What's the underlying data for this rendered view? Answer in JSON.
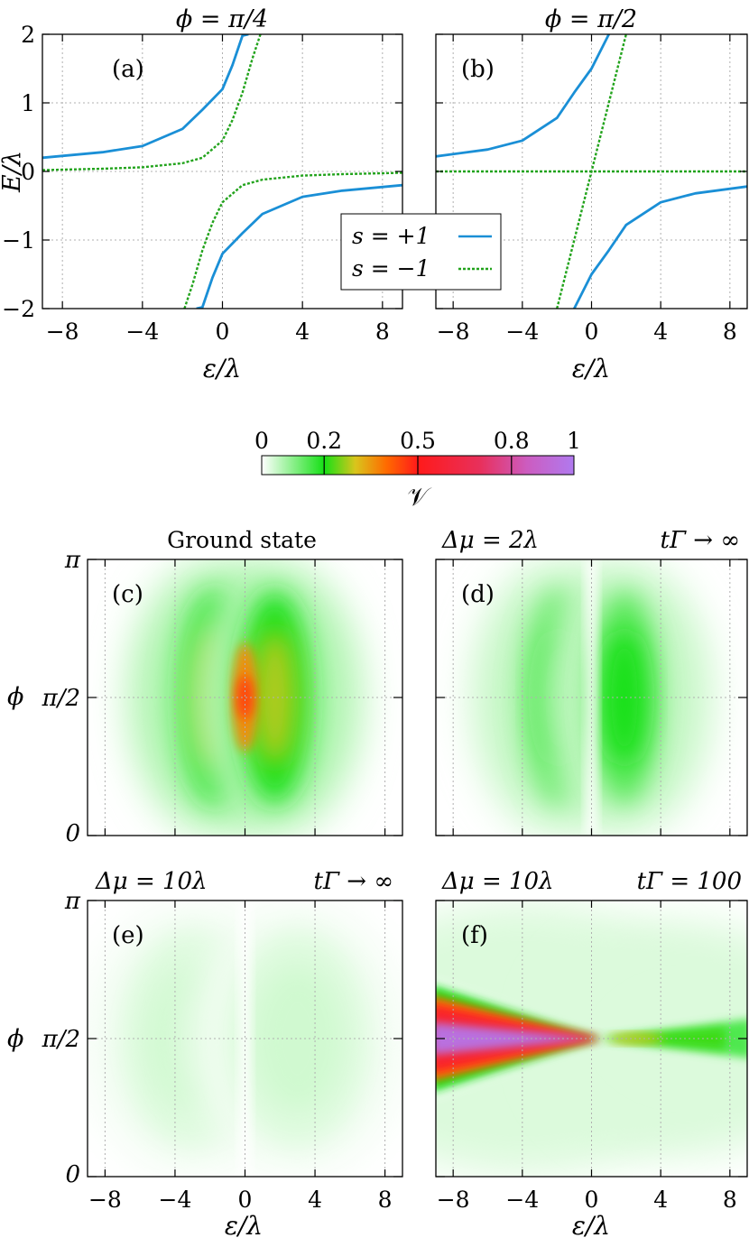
{
  "chart_data": [
    {
      "id": "a",
      "type": "line",
      "panel_label": "(a)",
      "title": "ϕ = π/4",
      "xlabel": "ε/λ",
      "ylabel": "E/λ",
      "xlim": [
        -9,
        9
      ],
      "ylim": [
        -2,
        2
      ],
      "x_ticks": [
        "−8",
        "−4",
        "0",
        "4",
        "8"
      ],
      "y_ticks": [
        "−2",
        "−1",
        "0",
        "1",
        "2"
      ],
      "grid": true,
      "series": [
        {
          "name": "s = +1",
          "color": "#1a8fd6",
          "style": "solid",
          "branches": [
            {
              "x": [
                -9,
                -6,
                -4,
                -2,
                -1,
                0,
                0.5,
                1.0,
                1.3
              ],
              "y": [
                0.2,
                0.28,
                0.37,
                0.62,
                0.9,
                1.2,
                1.55,
                1.98,
                2.0
              ]
            },
            {
              "x": [
                -1.3,
                -1.0,
                -0.5,
                0,
                1,
                2,
                4,
                6,
                9
              ],
              "y": [
                -2.0,
                -1.98,
                -1.55,
                -1.2,
                -0.9,
                -0.62,
                -0.37,
                -0.28,
                -0.2
              ]
            }
          ]
        },
        {
          "name": "s = −1",
          "color": "#22a31c",
          "style": "dashed",
          "branches": [
            {
              "x": [
                -9,
                -6,
                -4,
                -2,
                -1,
                0,
                0.5,
                1.0,
                1.5,
                1.9
              ],
              "y": [
                0.02,
                0.04,
                0.06,
                0.12,
                0.2,
                0.45,
                0.75,
                1.15,
                1.65,
                2.0
              ]
            },
            {
              "x": [
                -1.9,
                -1.5,
                -1.0,
                -0.5,
                0,
                1,
                2,
                4,
                6,
                9
              ],
              "y": [
                -2.0,
                -1.65,
                -1.15,
                -0.75,
                -0.45,
                -0.2,
                -0.12,
                -0.06,
                -0.04,
                -0.02
              ]
            }
          ]
        }
      ]
    },
    {
      "id": "b",
      "type": "line",
      "panel_label": "(b)",
      "title": "ϕ = π/2",
      "xlabel": "ε/λ",
      "xlim": [
        -9,
        9
      ],
      "ylim": [
        -2,
        2
      ],
      "x_ticks": [
        "−8",
        "−4",
        "0",
        "4",
        "8"
      ],
      "grid": true,
      "legend": {
        "position": "top-left",
        "entries": [
          "s = +1",
          "s = −1"
        ]
      },
      "series": [
        {
          "name": "s = +1",
          "color": "#1a8fd6",
          "style": "solid",
          "branches": [
            {
              "x": [
                -9,
                -6,
                -4,
                -2,
                -1,
                0,
                0.5,
                1.0
              ],
              "y": [
                0.22,
                0.32,
                0.45,
                0.78,
                1.15,
                1.5,
                1.75,
                2.0
              ]
            },
            {
              "x": [
                -1.0,
                -0.5,
                0,
                1,
                2,
                4,
                6,
                9
              ],
              "y": [
                -2.0,
                -1.75,
                -1.5,
                -1.15,
                -0.78,
                -0.45,
                -0.32,
                -0.22
              ]
            }
          ]
        },
        {
          "name": "s = −1",
          "color": "#22a31c",
          "style": "dashed",
          "branches": [
            {
              "x": [
                -9,
                9
              ],
              "y": [
                0,
                0
              ]
            },
            {
              "x": [
                -2.0,
                2.0
              ],
              "y": [
                -2,
                2
              ]
            }
          ]
        }
      ]
    },
    {
      "id": "colorbar",
      "type": "heatmap",
      "label": "𝒱",
      "ticks": [
        "0",
        "0.2",
        "0.5",
        "0.8",
        "1"
      ],
      "tick_values": [
        0,
        0.2,
        0.5,
        0.8,
        1
      ],
      "stops": [
        {
          "v": 0.0,
          "color": "#ffffff"
        },
        {
          "v": 0.2,
          "color": "#16e016"
        },
        {
          "v": 0.3,
          "color": "#d9c51c"
        },
        {
          "v": 0.4,
          "color": "#ff6a00"
        },
        {
          "v": 0.5,
          "color": "#ff1a1a"
        },
        {
          "v": 0.7,
          "color": "#e8305c"
        },
        {
          "v": 0.85,
          "color": "#cc5cc0"
        },
        {
          "v": 1.0,
          "color": "#b07aef"
        }
      ]
    },
    {
      "id": "c",
      "type": "heatmap",
      "panel_label": "(c)",
      "title": "Ground state",
      "ylabel": "ϕ",
      "xlim": [
        -9,
        9
      ],
      "y_ticks": [
        "0",
        "π/2",
        "π"
      ],
      "grid": true,
      "peak_value": 0.45,
      "lobes": [
        {
          "x_center": -1.7,
          "phi_center": 1.5708,
          "value": 0.28
        },
        {
          "x_center": 1.7,
          "phi_center": 1.5708,
          "value": 0.28
        },
        {
          "x_center": 0,
          "phi_center": 1.5708,
          "value": 0.45
        }
      ]
    },
    {
      "id": "d",
      "type": "heatmap",
      "panel_label": "(d)",
      "title_left": "Δμ = 2λ",
      "title_right": "tΓ → ∞",
      "xlim": [
        -9,
        9
      ],
      "grid": true,
      "lobes": [
        {
          "x_center": -1.9,
          "phi_center": 1.5708,
          "value": 0.2
        },
        {
          "x_center": 1.9,
          "phi_center": 1.5708,
          "value": 0.2
        }
      ]
    },
    {
      "id": "e",
      "type": "heatmap",
      "panel_label": "(e)",
      "title_left": "Δμ = 10λ",
      "title_right": "tΓ → ∞",
      "xlabel": "ε/λ",
      "ylabel": "ϕ",
      "xlim": [
        -9,
        9
      ],
      "x_ticks": [
        "−8",
        "−4",
        "0",
        "4",
        "8"
      ],
      "y_ticks": [
        "0",
        "π/2",
        "π"
      ],
      "grid": true,
      "lobes": [
        {
          "x_center": -3,
          "phi_center": 1.5708,
          "value": 0.04
        },
        {
          "x_center": 3,
          "phi_center": 1.5708,
          "value": 0.04
        }
      ]
    },
    {
      "id": "f",
      "type": "heatmap",
      "panel_label": "(f)",
      "title_left": "Δμ = 10λ",
      "title_right": "tΓ = 100",
      "xlabel": "ε/λ",
      "xlim": [
        -9,
        9
      ],
      "x_ticks": [
        "−8",
        "−4",
        "0",
        "4",
        "8"
      ],
      "grid": true,
      "wedge": {
        "x_vertex": 0.5,
        "left_max": 0.95,
        "right_max": 0.3
      }
    }
  ]
}
